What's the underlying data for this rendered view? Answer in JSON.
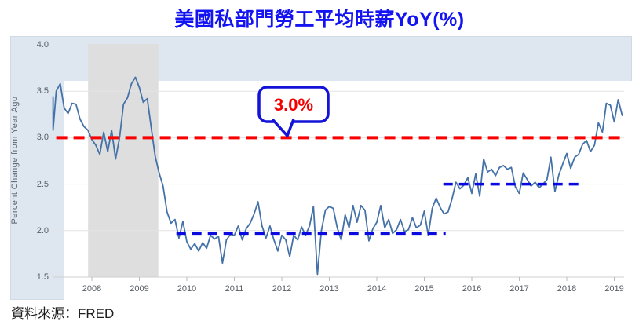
{
  "title": "美國私部門勞工平均時薪YoY(%)",
  "source_note": "資料來源：FRED",
  "callout": {
    "label": "3.0%",
    "text_color": "#f50000",
    "border_color": "#1212d9"
  },
  "colors": {
    "title": "#1414f2",
    "panel_background": "#dee7f0",
    "recession_band": "#dedede",
    "gridline": "#e3e3e3",
    "axis_line": "#cfcfcf",
    "series_line": "#4472a8",
    "red_reference": "#fb0000",
    "blue_reference": "#0909e0"
  },
  "chart_data": {
    "type": "line",
    "title": "美國私部門勞工平均時薪YoY(%)",
    "xlabel": "",
    "ylabel": "Percent Change from Year Ago",
    "ylim": [
      1.5,
      4.0
    ],
    "grid": "horizontal",
    "legend": "none",
    "yticks": [
      "4.0",
      "3.5",
      "3.0",
      "2.5",
      "2.0",
      "1.5"
    ],
    "xticks": [
      "2008",
      "2009",
      "2010",
      "2011",
      "2012",
      "2013",
      "2014",
      "2015",
      "2016",
      "2017",
      "2018",
      "2019"
    ],
    "recession_band": {
      "start": 2007.92,
      "end": 2009.4
    },
    "series": [
      {
        "name": "美國私部門勞工平均時薪YoY",
        "color": "#4472a8",
        "start_year": 2007.0833,
        "frequency": "monthly",
        "values": [
          3.44,
          3.08,
          3.5,
          3.58,
          3.32,
          3.26,
          3.37,
          3.36,
          3.2,
          3.12,
          3.08,
          2.98,
          2.92,
          2.82,
          3.06,
          2.85,
          3.08,
          2.77,
          3.0,
          3.36,
          3.43,
          3.58,
          3.65,
          3.54,
          3.38,
          3.42,
          3.11,
          2.8,
          2.62,
          2.48,
          2.2,
          2.08,
          2.12,
          1.92,
          2.1,
          1.88,
          1.8,
          1.86,
          1.78,
          1.87,
          1.81,
          1.95,
          1.91,
          1.94,
          1.65,
          1.9,
          1.96,
          1.95,
          2.05,
          1.9,
          2.02,
          2.08,
          2.18,
          2.31,
          2.05,
          1.92,
          2.05,
          1.9,
          1.78,
          1.95,
          1.9,
          1.72,
          1.95,
          1.9,
          2.04,
          1.95,
          2.05,
          2.26,
          1.53,
          2.0,
          2.22,
          2.26,
          2.24,
          2.03,
          1.9,
          2.17,
          2.03,
          2.27,
          2.09,
          2.27,
          2.22,
          1.89,
          2.02,
          2.09,
          2.27,
          2.03,
          2.12,
          1.97,
          2.01,
          2.12,
          1.99,
          2.01,
          2.14,
          2.03,
          2.06,
          2.21,
          1.95,
          2.24,
          2.35,
          2.25,
          2.18,
          2.2,
          2.34,
          2.52,
          2.45,
          2.49,
          2.57,
          2.4,
          2.61,
          2.37,
          2.77,
          2.63,
          2.66,
          2.59,
          2.68,
          2.7,
          2.66,
          2.68,
          2.47,
          2.4,
          2.62,
          2.55,
          2.48,
          2.52,
          2.46,
          2.5,
          2.55,
          2.79,
          2.42,
          2.6,
          2.72,
          2.83,
          2.67,
          2.79,
          2.82,
          2.93,
          2.97,
          2.85,
          2.92,
          3.16,
          3.06,
          3.37,
          3.35,
          3.17,
          3.41,
          3.24
        ]
      }
    ],
    "reference_lines": [
      {
        "name": "red-3pct-line",
        "value": 3.0,
        "x_start": 2007.25,
        "x_end": 2019.17,
        "color": "#fb0000",
        "width": 4,
        "dash": "14 8",
        "label": "3.0%"
      },
      {
        "name": "blue-2pct-line",
        "value": 1.97,
        "x_start": 2009.78,
        "x_end": 2015.45,
        "color": "#0909e0",
        "width": 3.5,
        "dash": "12 8",
        "label": ""
      },
      {
        "name": "blue-2p5pct-line",
        "value": 2.5,
        "x_start": 2015.4,
        "x_end": 2018.28,
        "color": "#0909e0",
        "width": 3.5,
        "dash": "12 8",
        "label": ""
      }
    ],
    "annotations": [
      {
        "text": "3.0%",
        "points_to_value": 3.0
      }
    ]
  }
}
